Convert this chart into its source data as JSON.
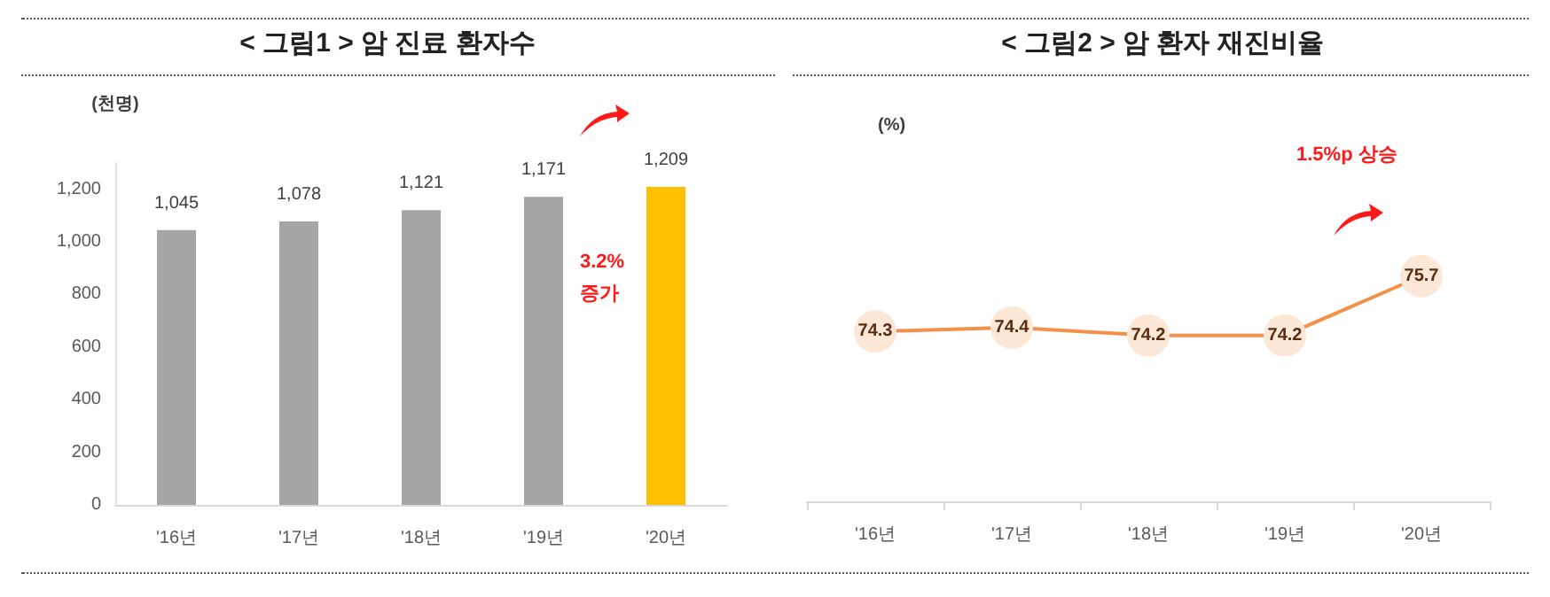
{
  "chart_data": [
    {
      "type": "bar",
      "title": "< 그림1 > 암 진료 환자수",
      "ylabel": "(천명)",
      "categories": [
        "'16년",
        "'17년",
        "'18년",
        "'19년",
        "'20년"
      ],
      "values": [
        1045,
        1078,
        1121,
        1171,
        1209
      ],
      "value_labels": [
        "1,045",
        "1,078",
        "1,121",
        "1,171",
        "1,209"
      ],
      "colors": [
        "#a5a5a5",
        "#a5a5a5",
        "#a5a5a5",
        "#a5a5a5",
        "#ffc000"
      ],
      "ylim": [
        0,
        1300
      ],
      "yticks": [
        0,
        200,
        400,
        600,
        800,
        {
          "value": 1000,
          "label": "1,000"
        },
        {
          "value": 1200,
          "label": "1,200"
        }
      ],
      "grid": false,
      "annotations": [
        "3.2% 증가"
      ]
    },
    {
      "type": "line",
      "title": "< 그림2 > 암 환자 재진비율",
      "ylabel": "(%)",
      "categories": [
        "'16년",
        "'17년",
        "'18년",
        "'19년",
        "'20년"
      ],
      "series": [
        {
          "color": "#f4904a",
          "values": [
            74.3,
            74.4,
            74.2,
            74.2,
            75.7
          ]
        }
      ],
      "data_labels": true,
      "marker": "circle",
      "line_style": "solid",
      "tick_labels": "x",
      "grid": false,
      "annotations": [
        "1.5%p 상승"
      ]
    }
  ]
}
